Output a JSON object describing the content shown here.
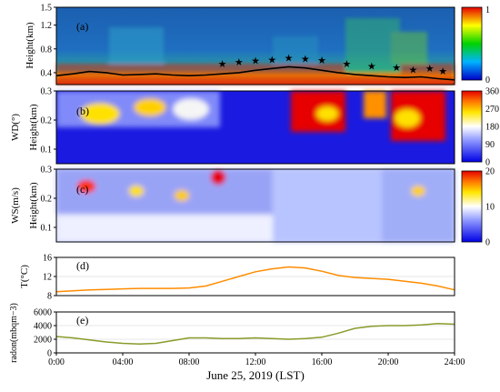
{
  "colors": {
    "temperature_line": "#ff8c00",
    "radon_line": "#8a9a2a",
    "boundary_line": "#000000"
  },
  "chart_data": [
    {
      "panel": "a",
      "type": "heatmap",
      "tag": "(a)",
      "ylabel": "Height(km)",
      "ylim": [
        0.2,
        1.5
      ],
      "yticks": [
        "0.4",
        "0.8",
        "1.2",
        "1.5"
      ],
      "colorbar": {
        "ticks": [
          "0",
          "1"
        ],
        "scale": "blue-green-yellow-red"
      },
      "overlay_series": [
        {
          "type": "line",
          "x": [
            0,
            1,
            2,
            3,
            4,
            5,
            6,
            7,
            8,
            9,
            10,
            11,
            12,
            13,
            14,
            15,
            16,
            17,
            18,
            19,
            20,
            21,
            22,
            23,
            24
          ],
          "y": [
            0.35,
            0.38,
            0.42,
            0.4,
            0.36,
            0.37,
            0.38,
            0.36,
            0.35,
            0.36,
            0.38,
            0.4,
            0.44,
            0.47,
            0.5,
            0.48,
            0.44,
            0.4,
            0.37,
            0.35,
            0.33,
            0.32,
            0.33,
            0.3,
            0.28
          ]
        },
        {
          "type": "scatter",
          "marker": "star",
          "x": [
            10,
            11,
            12,
            13,
            14,
            15,
            16,
            17.5,
            19,
            20.5,
            21.5,
            22.5,
            23.3
          ],
          "y": [
            0.4,
            0.43,
            0.45,
            0.47,
            0.5,
            0.48,
            0.46,
            0.4,
            0.36,
            0.34,
            0.3,
            0.32,
            0.28
          ]
        }
      ]
    },
    {
      "panel": "b",
      "type": "heatmap",
      "tag": "(b)",
      "ylabel": "Height(km)",
      "ylabel_outer": "WD(°)",
      "ylim": [
        0.05,
        0.3
      ],
      "yticks": [
        "0.1",
        "0.2",
        "0.3"
      ],
      "colorbar": {
        "ticks": [
          "0",
          "90",
          "180",
          "270",
          "360"
        ],
        "scale": "blue-white-yellow-red"
      }
    },
    {
      "panel": "c",
      "type": "heatmap",
      "tag": "(c)",
      "ylabel": "Height(km)",
      "ylabel_outer": "WS(m/s)",
      "ylim": [
        0.05,
        0.3
      ],
      "yticks": [
        "0.1",
        "0.2",
        "0.3"
      ],
      "colorbar": {
        "ticks": [
          "0",
          "10",
          "20"
        ],
        "scale": "blue-white-yellow-red"
      }
    },
    {
      "panel": "d",
      "type": "line",
      "tag": "(d)",
      "ylabel": "T(°C)",
      "ylim": [
        8,
        16
      ],
      "yticks": [
        "8",
        "12",
        "16"
      ],
      "grid": true,
      "series": [
        {
          "x": [
            0,
            1,
            2,
            3,
            4,
            5,
            6,
            7,
            8,
            9,
            10,
            11,
            12,
            13,
            14,
            15,
            16,
            17,
            18,
            19,
            20,
            21,
            22,
            23,
            24
          ],
          "values": [
            8.8,
            9.0,
            9.2,
            9.3,
            9.4,
            9.5,
            9.5,
            9.5,
            9.6,
            10.0,
            11.0,
            12.0,
            13.0,
            13.6,
            14.0,
            13.8,
            13.1,
            12.2,
            11.8,
            11.6,
            11.4,
            11.0,
            10.6,
            10.0,
            9.2
          ]
        }
      ]
    },
    {
      "panel": "e",
      "type": "line",
      "tag": "(e)",
      "ylabel": "radon(mbqm−3)",
      "ylim": [
        0,
        6000
      ],
      "yticks": [
        "0",
        "2000",
        "4000",
        "6000"
      ],
      "grid": true,
      "xlabel": "June 25, 2019 (LST)",
      "xticks": [
        "0:00",
        "04:00",
        "08:00",
        "12:00",
        "16:00",
        "20:00",
        "24:00"
      ],
      "xlim": [
        0,
        24
      ],
      "series": [
        {
          "x": [
            0,
            1,
            2,
            3,
            4,
            5,
            6,
            7,
            8,
            9,
            10,
            11,
            12,
            13,
            14,
            15,
            16,
            17,
            18,
            19,
            20,
            21,
            22,
            23,
            24
          ],
          "values": [
            2400,
            2200,
            1900,
            1600,
            1400,
            1300,
            1400,
            1800,
            2200,
            2200,
            2100,
            2100,
            2200,
            2100,
            2000,
            2100,
            2300,
            2900,
            3600,
            3900,
            4000,
            4000,
            4100,
            4300,
            4200
          ]
        }
      ]
    }
  ]
}
